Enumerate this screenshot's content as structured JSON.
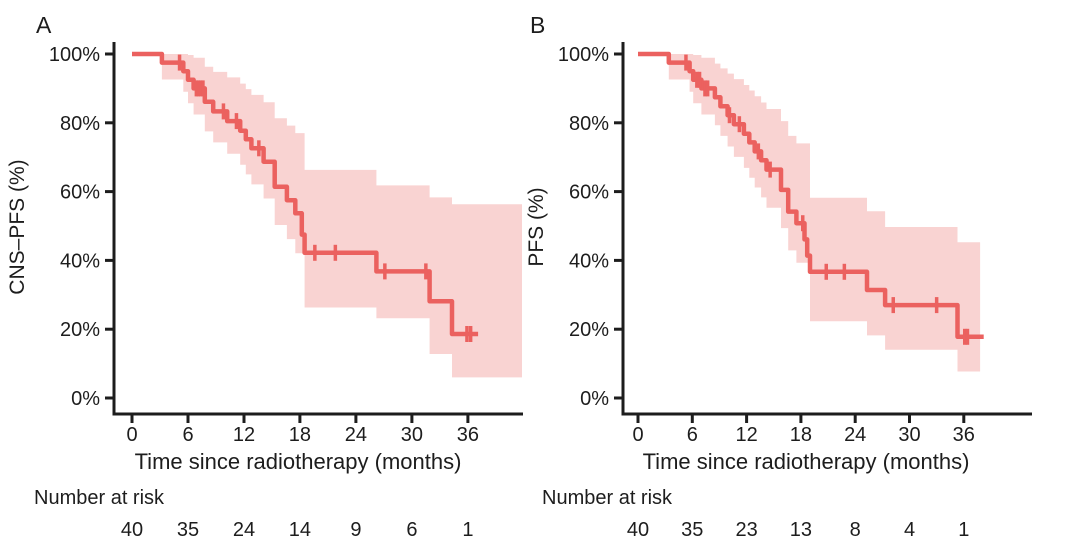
{
  "colors": {
    "line": "#eb615f",
    "ci_band": "#f9d3d2",
    "axis": "#1d1d1d",
    "text": "#1d1d1d",
    "background": "#ffffff"
  },
  "chart_data": [
    {
      "type": "line",
      "subtype": "kaplan-meier-step",
      "panel_label": "A",
      "ylabel": "CNS–PFS (%)",
      "xlabel": "Time since radiotherapy (months)",
      "risk_label": "Number at risk",
      "xlim": [
        -2,
        42
      ],
      "ylim": [
        0,
        100
      ],
      "grid": false,
      "legend": "none",
      "xticks": [
        0,
        6,
        12,
        18,
        24,
        30,
        36
      ],
      "xtick_labels": [
        "0",
        "6",
        "12",
        "18",
        "24",
        "30",
        "36"
      ],
      "yticks": [
        100,
        80,
        60,
        40,
        20,
        0
      ],
      "ytick_labels": [
        "100%",
        "80%",
        "60%",
        "40%",
        "20%",
        "0%"
      ],
      "risk_times": [
        0,
        6,
        12,
        18,
        24,
        30,
        36
      ],
      "number_at_risk": [
        40,
        35,
        24,
        14,
        9,
        6,
        1
      ],
      "survival_steps": [
        [
          3.2,
          97.5
        ],
        [
          5.5,
          95.0
        ],
        [
          6.0,
          92.5
        ],
        [
          6.6,
          90.0
        ],
        [
          7.8,
          86.1
        ],
        [
          8.7,
          83.3
        ],
        [
          10.2,
          80.5
        ],
        [
          11.6,
          77.7
        ],
        [
          12.2,
          75.2
        ],
        [
          12.8,
          72.6
        ],
        [
          14.1,
          68.7
        ],
        [
          15.3,
          61.4
        ],
        [
          16.6,
          57.5
        ],
        [
          17.5,
          53.7
        ],
        [
          18.2,
          47.5
        ],
        [
          18.5,
          42.2
        ],
        [
          26.2,
          36.8
        ],
        [
          31.9,
          28.1
        ],
        [
          34.3,
          18.6
        ]
      ],
      "line_end": 37.1,
      "censor_marks": [
        [
          5.1,
          97.5
        ],
        [
          6.9,
          90.0
        ],
        [
          7.1,
          90.0
        ],
        [
          7.35,
          90.0
        ],
        [
          7.6,
          90.0
        ],
        [
          9.8,
          83.3
        ],
        [
          11.2,
          80.5
        ],
        [
          13.6,
          72.6
        ],
        [
          19.6,
          42.2
        ],
        [
          21.8,
          42.2
        ],
        [
          27.1,
          36.8
        ],
        [
          31.5,
          36.8
        ],
        [
          35.9,
          18.6
        ],
        [
          36.3,
          18.6
        ]
      ],
      "ci_steps": [
        [
          3.2,
          92.6,
          100.0
        ],
        [
          5.5,
          89.0,
          100.0
        ],
        [
          6.0,
          85.7,
          99.7
        ],
        [
          6.6,
          82.4,
          98.9
        ],
        [
          7.8,
          77.5,
          96.3
        ],
        [
          8.7,
          74.3,
          94.8
        ],
        [
          10.2,
          71.0,
          93.2
        ],
        [
          11.6,
          67.8,
          91.4
        ],
        [
          12.2,
          65.0,
          89.8
        ],
        [
          12.8,
          62.1,
          88.1
        ],
        [
          14.1,
          58.0,
          86.0
        ],
        [
          15.3,
          50.3,
          81.3
        ],
        [
          16.6,
          46.2,
          79.2
        ],
        [
          17.5,
          42.1,
          77.0
        ],
        [
          18.5,
          26.3,
          66.3
        ],
        [
          26.2,
          23.2,
          61.8
        ],
        [
          31.9,
          12.8,
          58.3
        ],
        [
          34.3,
          6.0,
          56.3
        ]
      ],
      "ci_end": 41.8
    },
    {
      "type": "line",
      "subtype": "kaplan-meier-step",
      "panel_label": "B",
      "ylabel": "PFS (%)",
      "xlabel": "Time since radiotherapy (months)",
      "risk_label": "Number at risk",
      "xlim": [
        -2,
        43
      ],
      "ylim": [
        0,
        100
      ],
      "grid": false,
      "legend": "none",
      "xticks": [
        0,
        6,
        12,
        18,
        24,
        30,
        36
      ],
      "xtick_labels": [
        "0",
        "6",
        "12",
        "18",
        "24",
        "30",
        "36"
      ],
      "yticks": [
        100,
        80,
        60,
        40,
        20,
        0
      ],
      "ytick_labels": [
        "100%",
        "80%",
        "60%",
        "40%",
        "20%",
        "0%"
      ],
      "risk_times": [
        0,
        6,
        12,
        18,
        24,
        30,
        36
      ],
      "number_at_risk": [
        40,
        35,
        23,
        13,
        8,
        4,
        1
      ],
      "survival_steps": [
        [
          3.4,
          97.5
        ],
        [
          5.7,
          95.0
        ],
        [
          6.1,
          92.5
        ],
        [
          7.0,
          90.0
        ],
        [
          8.5,
          87.4
        ],
        [
          9.1,
          84.8
        ],
        [
          9.9,
          82.2
        ],
        [
          10.6,
          79.6
        ],
        [
          11.7,
          76.8
        ],
        [
          12.3,
          74.3
        ],
        [
          12.9,
          71.7
        ],
        [
          13.6,
          69.1
        ],
        [
          14.2,
          66.4
        ],
        [
          15.8,
          60.5
        ],
        [
          16.6,
          54.2
        ],
        [
          17.5,
          50.8
        ],
        [
          18.4,
          46.1
        ],
        [
          18.7,
          41.4
        ],
        [
          19.0,
          36.7
        ],
        [
          25.3,
          31.4
        ],
        [
          27.3,
          27.0
        ],
        [
          35.3,
          17.8
        ]
      ],
      "line_end": 38.2,
      "censor_marks": [
        [
          5.3,
          97.5
        ],
        [
          6.5,
          92.5
        ],
        [
          6.8,
          92.5
        ],
        [
          7.4,
          90.0
        ],
        [
          7.7,
          90.0
        ],
        [
          10.1,
          82.2
        ],
        [
          11.2,
          79.6
        ],
        [
          13.3,
          71.7
        ],
        [
          14.6,
          66.4
        ],
        [
          18.2,
          50.8
        ],
        [
          20.8,
          36.7
        ],
        [
          22.8,
          36.7
        ],
        [
          28.2,
          27.0
        ],
        [
          33.0,
          27.0
        ],
        [
          36.1,
          17.8
        ],
        [
          36.4,
          17.8
        ]
      ],
      "ci_steps": [
        [
          3.4,
          92.6,
          100.0
        ],
        [
          5.7,
          89.0,
          100.0
        ],
        [
          6.1,
          85.7,
          99.7
        ],
        [
          7.0,
          82.4,
          98.9
        ],
        [
          8.5,
          79.3,
          97.2
        ],
        [
          9.1,
          76.2,
          95.8
        ],
        [
          9.9,
          73.1,
          94.3
        ],
        [
          10.6,
          70.1,
          92.7
        ],
        [
          11.7,
          66.9,
          91.0
        ],
        [
          12.3,
          64.0,
          89.4
        ],
        [
          12.9,
          61.2,
          87.7
        ],
        [
          13.6,
          58.3,
          85.9
        ],
        [
          14.2,
          55.3,
          84.0
        ],
        [
          15.8,
          49.4,
          80.5
        ],
        [
          16.6,
          42.9,
          76.2
        ],
        [
          17.5,
          39.3,
          74.0
        ],
        [
          19.0,
          22.3,
          58.2
        ],
        [
          25.3,
          18.2,
          54.3
        ],
        [
          27.3,
          14.0,
          49.7
        ],
        [
          35.3,
          7.7,
          45.3
        ]
      ],
      "ci_end": 37.8
    }
  ]
}
